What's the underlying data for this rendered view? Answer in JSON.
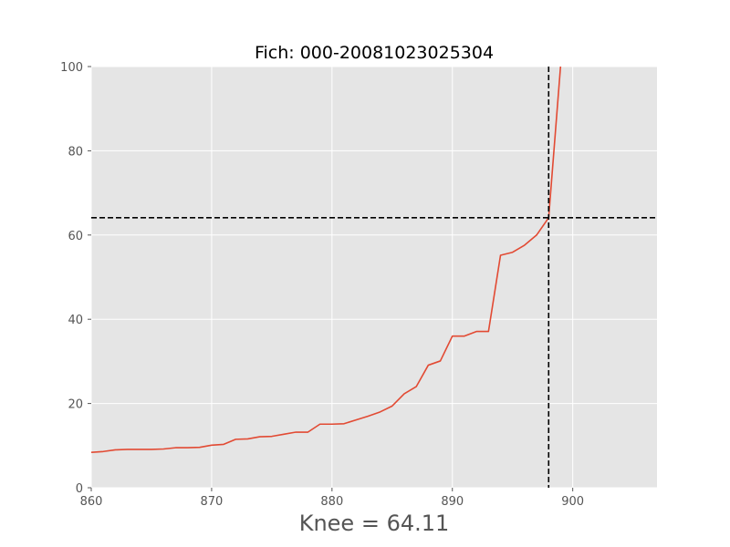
{
  "chart_data": {
    "type": "line",
    "title": "Fich: 000-20081023025304",
    "xlabel": "Knee = 64.11",
    "ylabel": "",
    "xlim": [
      860,
      907
    ],
    "ylim": [
      0,
      100
    ],
    "xticks": [
      860,
      870,
      880,
      890,
      900
    ],
    "yticks": [
      0,
      20,
      40,
      60,
      80,
      100
    ],
    "grid": true,
    "series": [
      {
        "color": "#E24A33",
        "x": [
          860,
          861,
          862,
          863,
          864,
          865,
          866,
          867,
          868,
          869,
          870,
          871,
          872,
          873,
          874,
          875,
          876,
          877,
          878,
          879,
          880,
          881,
          882,
          883,
          884,
          885,
          886,
          887,
          888,
          889,
          890,
          891,
          892,
          893,
          894,
          895,
          896,
          897,
          898,
          899
        ],
        "y": [
          8.4,
          8.6,
          9.0,
          9.1,
          9.1,
          9.1,
          9.2,
          9.5,
          9.5,
          9.6,
          10.1,
          10.3,
          11.5,
          11.6,
          12.1,
          12.2,
          12.7,
          13.2,
          13.2,
          15.1,
          15.1,
          15.2,
          16.1,
          17.0,
          18.0,
          19.4,
          22.3,
          24.0,
          29.1,
          30.1,
          36.0,
          36.0,
          37.1,
          37.1,
          55.2,
          55.9,
          57.6,
          60.0,
          64.11,
          100.5
        ]
      }
    ],
    "reference_lines": {
      "color": "#000000",
      "vertical_x": 898,
      "horizontal_y": 64.11
    },
    "colors": {
      "plot_background": "#E5E5E5",
      "grid": "#FFFFFF",
      "tick_text": "#555555"
    }
  }
}
